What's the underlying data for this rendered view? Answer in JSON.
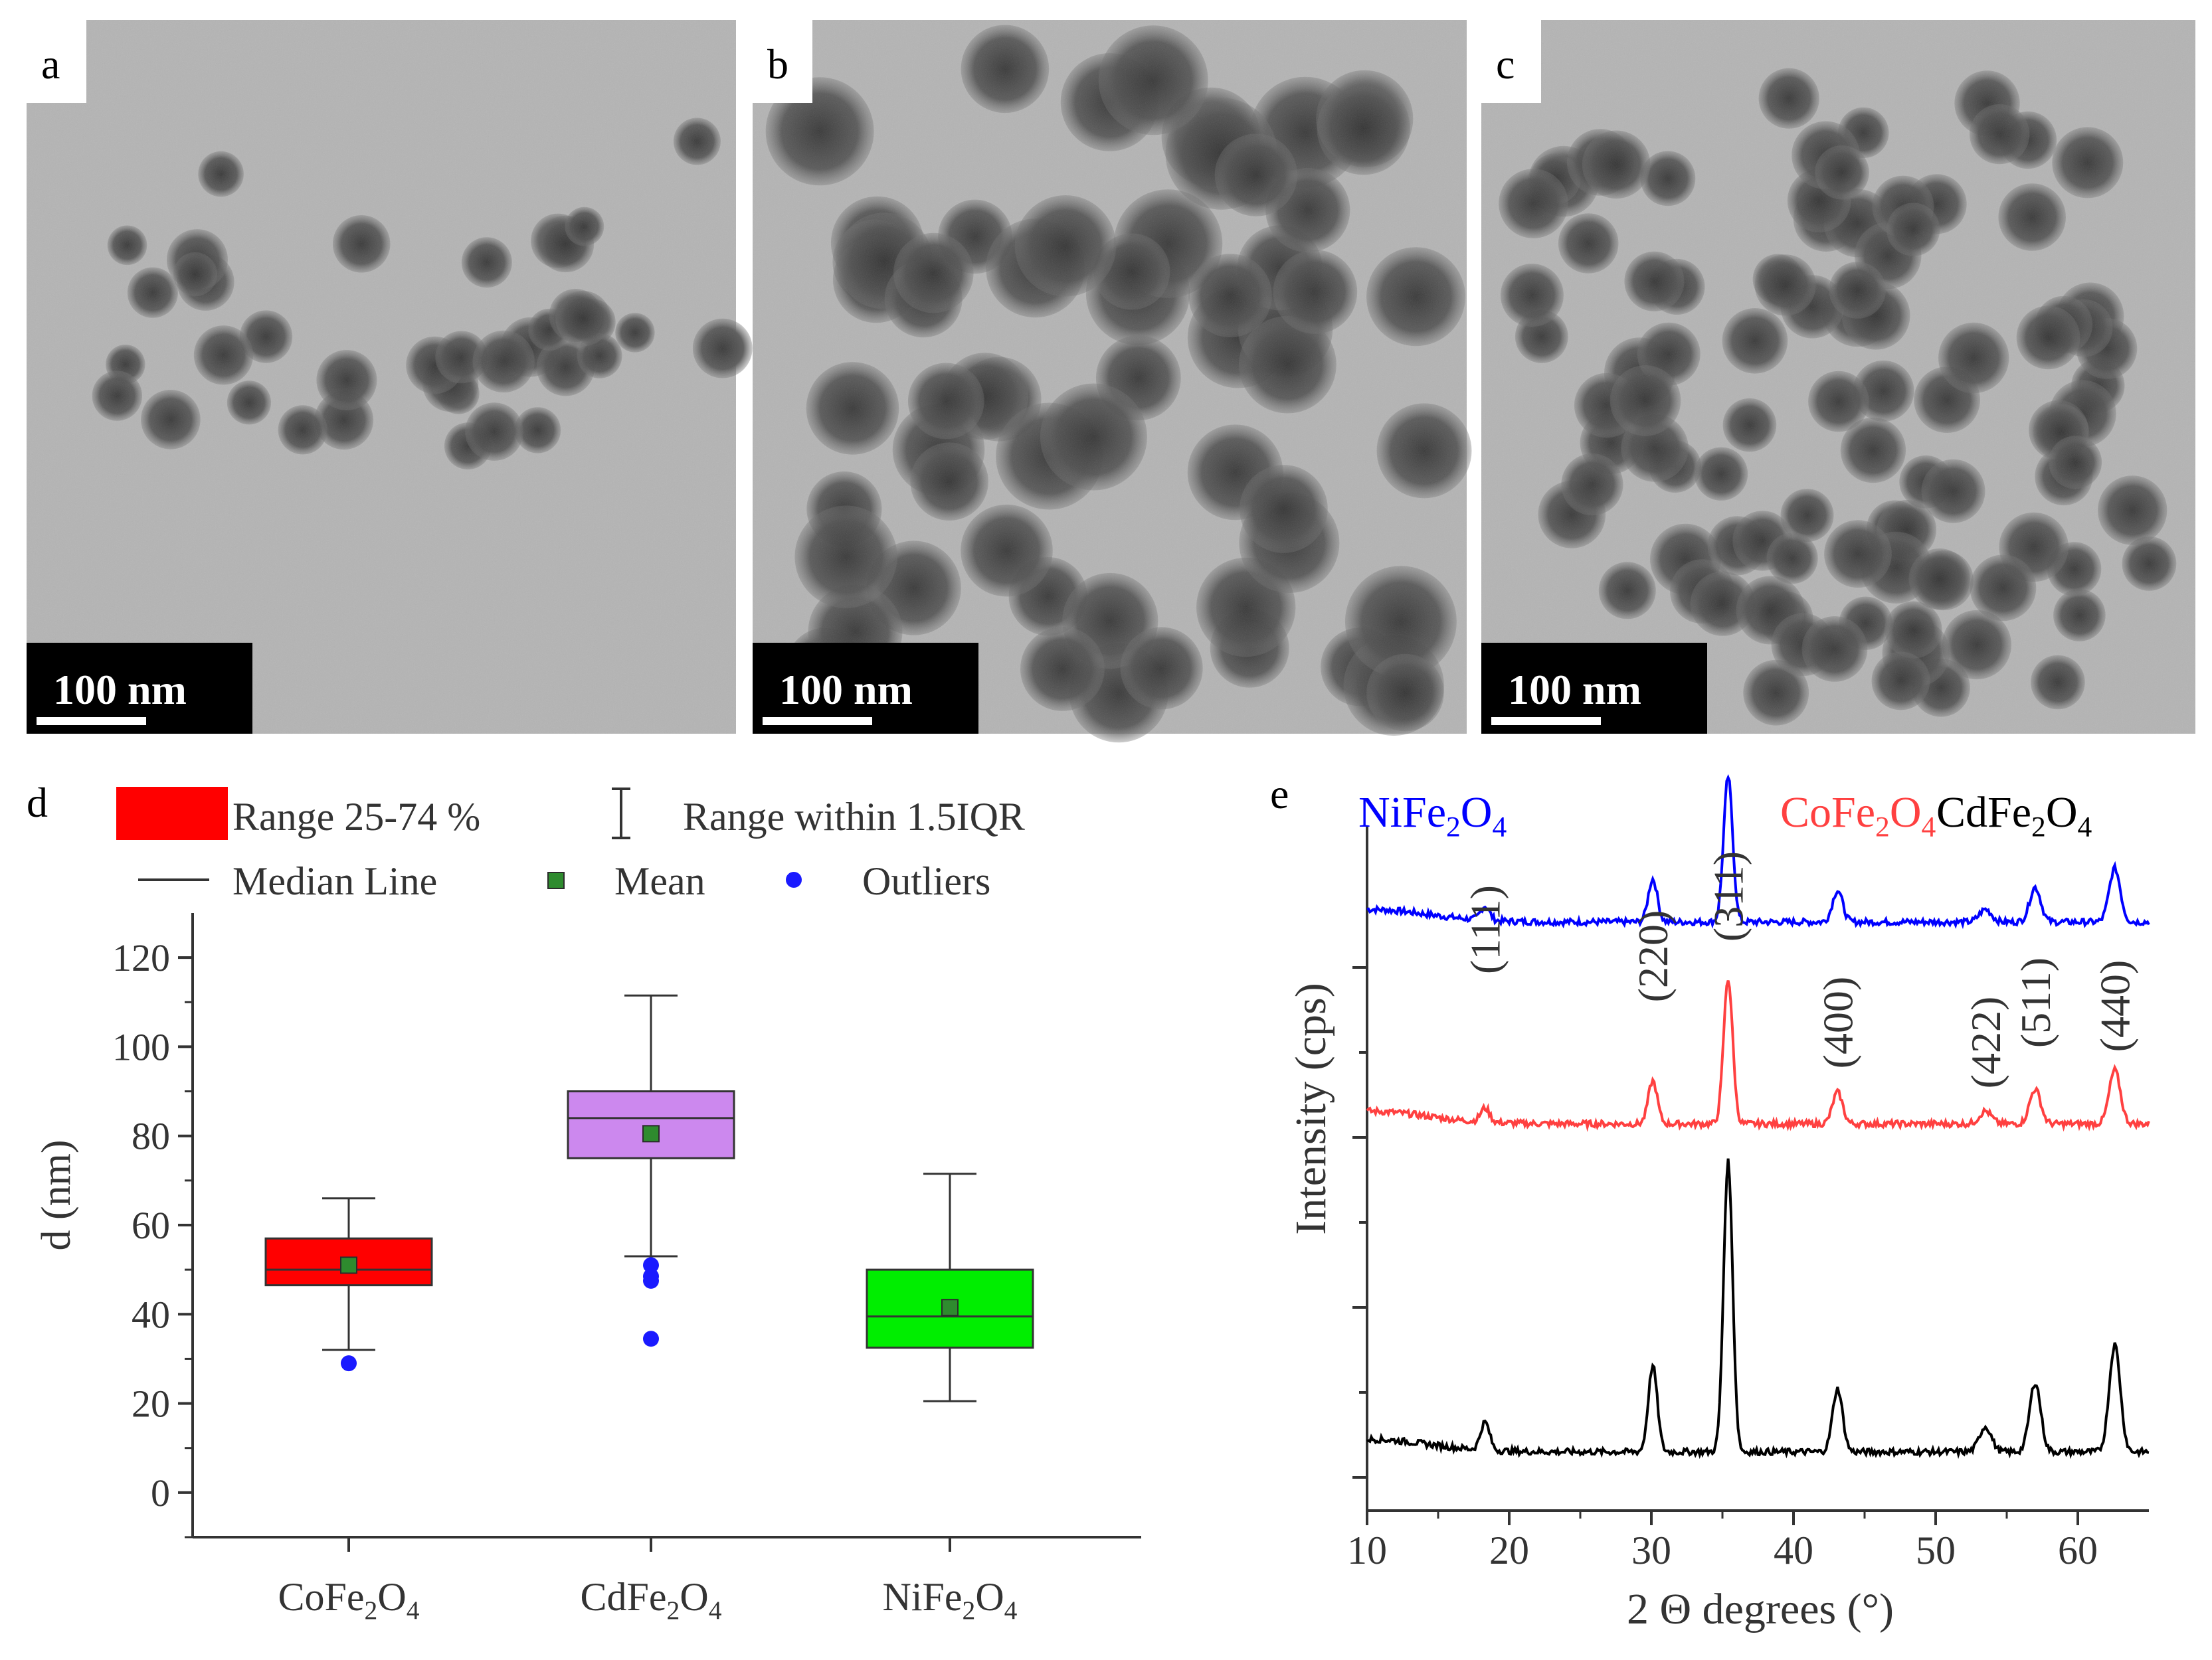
{
  "panels": {
    "a": {
      "label": "a",
      "scale_bar": "100 nm"
    },
    "b": {
      "label": "b",
      "scale_bar": "100 nm"
    },
    "c": {
      "label": "c",
      "scale_bar": "100 nm"
    },
    "d": {
      "label": "d"
    },
    "e": {
      "label": "e"
    }
  },
  "colors": {
    "tem_background": "#b4b4b4",
    "particle_dark": "#3c3c3c",
    "cofe": "#ff0000",
    "cdfe": "#cc88ee",
    "nife": "#00ee00",
    "mean": "#2e8b2e",
    "outlier": "#1a1aff",
    "xrd_nife": "#0000ff",
    "xrd_cofe": "#ff4040",
    "xrd_cdfe": "#000000"
  },
  "chart_data": [
    {
      "type": "box",
      "panel": "d",
      "ylabel": "d (nm)",
      "ylim": [
        -10,
        130
      ],
      "yticks": [
        0,
        20,
        40,
        60,
        80,
        100,
        120
      ],
      "legend": {
        "range": "Range 25-74 %",
        "whisker": "Range within 1.5IQR",
        "median": "Median Line",
        "mean": "Mean",
        "outliers": "Outliers"
      },
      "categories": [
        {
          "name": "CoFe",
          "sub1": "2",
          "mid": "O",
          "sub2": "4",
          "q1": 46.5,
          "median": 50,
          "q3": 57,
          "whisker_low": 32,
          "whisker_high": 66,
          "mean": 51,
          "outliers": [
            29
          ]
        },
        {
          "name": "CdFe",
          "sub1": "2",
          "mid": "O",
          "sub2": "4",
          "q1": 75,
          "median": 84,
          "q3": 90,
          "whisker_low": 53,
          "whisker_high": 111.5,
          "mean": 80.5,
          "outliers": [
            34.5,
            47.5,
            48.5,
            51
          ]
        },
        {
          "name": "NiFe",
          "sub1": "2",
          "mid": "O",
          "sub2": "4",
          "q1": 32.5,
          "median": 39.5,
          "q3": 50,
          "whisker_low": 20.5,
          "whisker_high": 71.5,
          "mean": 41.5,
          "outliers": []
        }
      ]
    },
    {
      "type": "line",
      "panel": "e",
      "xlabel": "2 Θ degrees (°)",
      "ylabel": "Intensity (cps)",
      "xlim": [
        10,
        65
      ],
      "xticks": [
        10,
        20,
        30,
        40,
        50,
        60
      ],
      "series": [
        {
          "name": "NiFe",
          "sub1": "2",
          "mid": "O",
          "sub2": "4",
          "color": "#0000ff",
          "baseline": 4.35,
          "scale": 0.5
        },
        {
          "name": "CoFe",
          "sub1": "2",
          "mid": "O",
          "sub2": "4",
          "color": "#ff4040",
          "baseline": 2.75,
          "scale": 0.5
        },
        {
          "name": "CdFe",
          "sub1": "2",
          "mid": "O",
          "sub2": "4",
          "color": "#000000",
          "baseline": 0.15,
          "scale": 1.0
        }
      ],
      "peaks": [
        {
          "x": 18.3,
          "h": 0.22,
          "w": 0.45
        },
        {
          "x": 30.1,
          "h": 0.68,
          "w": 0.45
        },
        {
          "x": 35.4,
          "h": 2.3,
          "w": 0.45
        },
        {
          "x": 43.1,
          "h": 0.5,
          "w": 0.5
        },
        {
          "x": 53.5,
          "h": 0.2,
          "w": 0.6
        },
        {
          "x": 57.0,
          "h": 0.55,
          "w": 0.55
        },
        {
          "x": 62.6,
          "h": 0.85,
          "w": 0.55
        }
      ],
      "peak_labels": [
        {
          "text": "(111)",
          "x": 18.3
        },
        {
          "text": "(220)",
          "x": 30.1
        },
        {
          "text": "(311)",
          "x": 35.4
        },
        {
          "text": "(400)",
          "x": 43.1
        },
        {
          "text": "(422)",
          "x": 53.5
        },
        {
          "text": "(511)",
          "x": 57.0
        },
        {
          "text": "(440)",
          "x": 62.6
        }
      ]
    }
  ]
}
